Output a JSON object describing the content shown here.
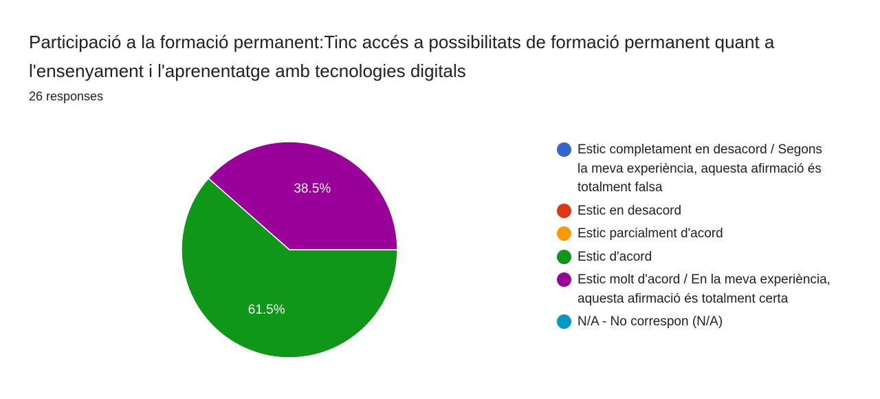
{
  "header": {
    "title": "Participació a la formació permanent:Tinc accés a possibilitats de formació permanent quant a l'ensenyament i l'aprenentatge amb tecnologies digitals",
    "responses": "26 responses"
  },
  "chart_data": {
    "type": "pie",
    "title": "Participació a la formació permanent:Tinc accés a possibilitats de formació permanent quant a l'ensenyament i l'aprenentatge amb tecnologies digitals",
    "total_responses": 26,
    "legend_position": "right",
    "categories": [
      "Estic completament en desacord / Segons la meva experiència, aquesta afirmació és totalment falsa",
      "Estic en desacord",
      "Estic parcialment d'acord",
      "Estic d'acord",
      "Estic molt d'acord / En la meva experiència, aquesta afirmació és totalment certa",
      "N/A - No correspon (N/A)"
    ],
    "values": [
      0,
      0,
      0,
      61.5,
      38.5,
      0
    ],
    "labels": [
      "",
      "",
      "",
      "61.5%",
      "38.5%",
      ""
    ],
    "colors": [
      "#3366cc",
      "#dc3912",
      "#ff9900",
      "#109618",
      "#990099",
      "#0099c6"
    ]
  }
}
